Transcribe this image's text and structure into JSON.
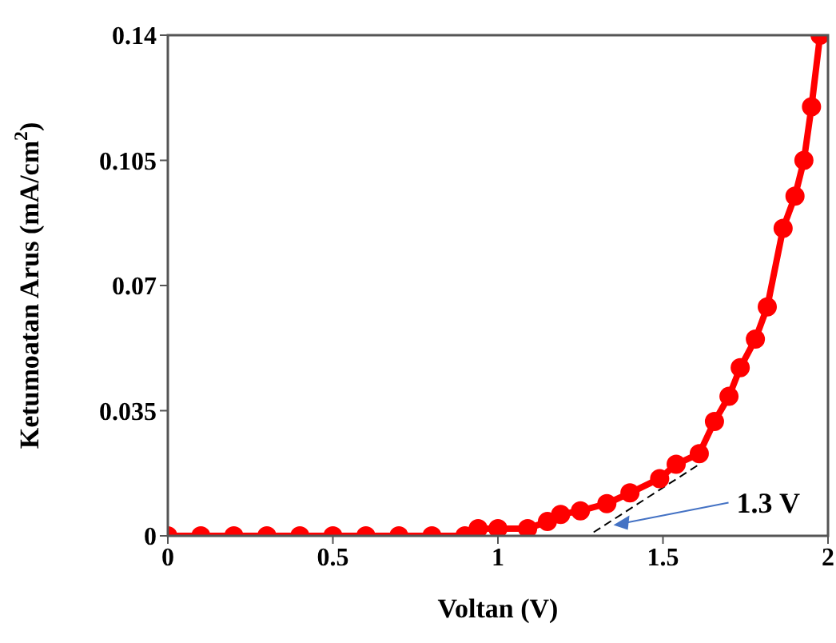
{
  "chart_data": {
    "type": "line",
    "xlabel": "Voltan (V)",
    "ylabel": "Ketumoatan Arus (mA/cm$^{2}$)",
    "xlim": [
      0,
      2
    ],
    "xticks": [
      0,
      0.5,
      1,
      1.5,
      2
    ],
    "ylim": [
      0,
      0.14
    ],
    "yticks": [
      0,
      0.035,
      0.07,
      0.105,
      0.14
    ],
    "series": [
      {
        "color": "#ff0000",
        "marker": "circle",
        "line_style": "solid",
        "x": [
          0,
          0.1,
          0.2,
          0.3,
          0.4,
          0.5,
          0.6,
          0.7,
          0.8,
          0.9,
          0.94,
          1.0,
          1.09,
          1.15,
          1.19,
          1.25,
          1.33,
          1.4,
          1.49,
          1.54,
          1.61,
          1.656,
          1.7,
          1.734,
          1.78,
          1.816,
          1.864,
          1.9,
          1.927,
          1.95,
          1.976
        ],
        "values": [
          0,
          0,
          0,
          0,
          0,
          0,
          0,
          0,
          0,
          0,
          0.002,
          0.002,
          0.002,
          0.004,
          0.006,
          0.007,
          0.009,
          0.012,
          0.016,
          0.02,
          0.023,
          0.032,
          0.039,
          0.047,
          0.055,
          0.064,
          0.086,
          0.095,
          0.105,
          0.12,
          0.14
        ]
      },
      {
        "color": "#000000",
        "marker": "none",
        "line_style": "dashed",
        "x": [
          1.29,
          1.61
        ],
        "values": [
          0.001,
          0.02
        ]
      }
    ],
    "annotations": [
      {
        "text": "1.3 V",
        "x": 1.35,
        "y": 0.003
      }
    ]
  }
}
